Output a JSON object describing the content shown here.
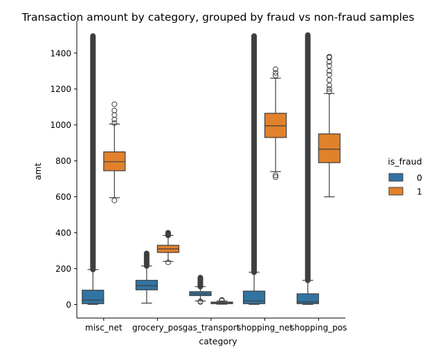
{
  "chart_data": {
    "type": "box",
    "title": "Transaction amount by category, grouped by fraud vs non-fraud samples",
    "xlabel": "category",
    "ylabel": "amt",
    "ylim": [
      -75,
      1580
    ],
    "yticks": [
      0,
      200,
      400,
      600,
      800,
      1000,
      1200,
      1400
    ],
    "categories": [
      "misc_net",
      "grocery_pos",
      "gas_transport",
      "shopping_net",
      "shopping_pos"
    ],
    "legend": {
      "title": "is_fraud",
      "position": "right",
      "entries": [
        {
          "label": "0",
          "color": "#3274a1"
        },
        {
          "label": "1",
          "color": "#e1812c"
        }
      ]
    },
    "series": [
      {
        "key": "0",
        "color": "#3274a1",
        "boxes": [
          {
            "q1": 5,
            "median": 25,
            "q3": 80,
            "whisker_low": 1,
            "whisker_high": 195,
            "outliers_dense": [
              195,
              1495
            ],
            "outliers": []
          },
          {
            "q1": 82,
            "median": 105,
            "q3": 135,
            "whisker_low": 8,
            "whisker_high": 215,
            "outliers_dense": [
              215,
              285
            ],
            "outliers": []
          },
          {
            "q1": 50,
            "median": 60,
            "q3": 72,
            "whisker_low": 20,
            "whisker_high": 100,
            "outliers_dense": [
              100,
              150
            ],
            "outliers": [
              15,
              18
            ]
          },
          {
            "q1": 5,
            "median": 20,
            "q3": 75,
            "whisker_low": 1,
            "whisker_high": 180,
            "outliers_dense": [
              180,
              1495
            ],
            "outliers": []
          },
          {
            "q1": 5,
            "median": 15,
            "q3": 60,
            "whisker_low": 1,
            "whisker_high": 135,
            "outliers_dense": [
              135,
              1500
            ],
            "outliers": []
          }
        ]
      },
      {
        "key": "1",
        "color": "#e1812c",
        "boxes": [
          {
            "q1": 745,
            "median": 795,
            "q3": 850,
            "whisker_low": 595,
            "whisker_high": 1005,
            "outliers_dense": [],
            "outliers": [
              580,
              1010,
              1030,
              1055,
              1080,
              1115
            ]
          },
          {
            "q1": 290,
            "median": 310,
            "q3": 330,
            "whisker_low": 240,
            "whisker_high": 385,
            "outliers_dense": [
              385,
              400
            ],
            "outliers": [
              235
            ]
          },
          {
            "q1": 5,
            "median": 10,
            "q3": 14,
            "whisker_low": 2,
            "whisker_high": 20,
            "outliers_dense": [],
            "outliers": [
              22,
              24,
              26
            ]
          },
          {
            "q1": 930,
            "median": 995,
            "q3": 1065,
            "whisker_low": 740,
            "whisker_high": 1260,
            "outliers_dense": [],
            "outliers": [
              710,
              720,
              1275,
              1290,
              1310
            ]
          },
          {
            "q1": 790,
            "median": 865,
            "q3": 950,
            "whisker_low": 600,
            "whisker_high": 1175,
            "outliers_dense": [],
            "outliers": [
              1185,
              1200,
              1220,
              1250,
              1280,
              1300,
              1330,
              1350,
              1375,
              1380
            ]
          }
        ]
      }
    ]
  }
}
